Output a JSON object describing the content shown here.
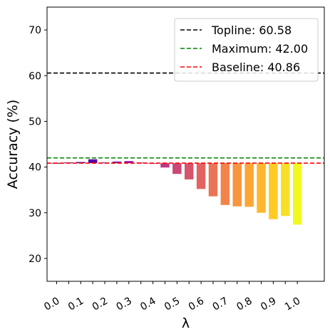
{
  "chart_data": {
    "type": "bar",
    "title": "",
    "xlabel": "λ",
    "ylabel": "Accuracy (%)",
    "ylim": [
      15,
      75
    ],
    "yticks": [
      20,
      30,
      40,
      50,
      60,
      70
    ],
    "xtick_labels": [
      "0.0",
      "0.1",
      "0.2",
      "0.3",
      "0.4",
      "0.5",
      "0.6",
      "0.7",
      "0.8",
      "0.9",
      "1.0"
    ],
    "baseline": 40.86,
    "x": [
      0.0,
      0.05,
      0.1,
      0.15,
      0.2,
      0.25,
      0.3,
      0.35,
      0.4,
      0.45,
      0.5,
      0.55,
      0.6,
      0.65,
      0.7,
      0.75,
      0.8,
      0.85,
      0.9,
      0.95,
      1.0
    ],
    "values": [
      40.9,
      41.0,
      41.1,
      41.7,
      41.0,
      41.2,
      41.3,
      41.0,
      40.7,
      39.9,
      38.5,
      37.3,
      35.2,
      33.6,
      31.7,
      31.4,
      31.3,
      30.0,
      28.6,
      29.3,
      27.4
    ],
    "colors": [
      "#0d0887",
      "#2a0593",
      "#41049d",
      "#5601a4",
      "#6a00a8",
      "#7e03a8",
      "#8f0da4",
      "#a11b9b",
      "#b12a90",
      "#bf3984",
      "#cc4778",
      "#d6556d",
      "#e16462",
      "#ea7457",
      "#f2844b",
      "#f89540",
      "#fca636",
      "#feb72d",
      "#fdca26",
      "#f8df25",
      "#f0f921"
    ],
    "reference_lines": [
      {
        "label": "Topline: 60.58",
        "value": 60.58,
        "color": "#000000"
      },
      {
        "label": "Maximum: 42.00",
        "value": 42.0,
        "color": "#008000"
      },
      {
        "label": "Baseline: 40.86",
        "value": 40.86,
        "color": "#ff0000"
      }
    ],
    "legend_position": "top-right",
    "grid": false
  }
}
